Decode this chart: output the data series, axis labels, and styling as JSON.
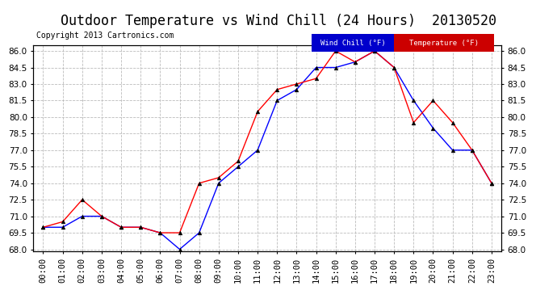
{
  "title": "Outdoor Temperature vs Wind Chill (24 Hours)  20130520",
  "copyright": "Copyright 2013 Cartronics.com",
  "x_labels": [
    "00:00",
    "01:00",
    "02:00",
    "03:00",
    "04:00",
    "05:00",
    "06:00",
    "07:00",
    "08:00",
    "09:00",
    "10:00",
    "11:00",
    "12:00",
    "13:00",
    "14:00",
    "15:00",
    "16:00",
    "17:00",
    "18:00",
    "19:00",
    "20:00",
    "21:00",
    "22:00",
    "23:00"
  ],
  "wind_chill": [
    70.0,
    70.0,
    71.0,
    71.0,
    70.0,
    70.0,
    69.5,
    68.0,
    69.5,
    74.0,
    75.5,
    77.0,
    81.5,
    82.5,
    84.5,
    84.5,
    85.0,
    86.0,
    84.5,
    81.5,
    79.0,
    77.0,
    77.0,
    74.0
  ],
  "temperature": [
    70.0,
    70.5,
    72.5,
    71.0,
    70.0,
    70.0,
    69.5,
    69.5,
    74.0,
    74.5,
    76.0,
    80.5,
    82.5,
    83.0,
    83.5,
    86.0,
    85.0,
    86.0,
    84.5,
    79.5,
    81.5,
    79.5,
    77.0,
    74.0
  ],
  "wind_chill_color": "#0000ff",
  "temperature_color": "#ff0000",
  "ylim_min": 68.0,
  "ylim_max": 86.0,
  "yticks": [
    68.0,
    69.5,
    71.0,
    72.5,
    74.0,
    75.5,
    77.0,
    78.5,
    80.0,
    81.5,
    83.0,
    84.5,
    86.0
  ],
  "bg_color": "#ffffff",
  "grid_color": "#bbbbbb",
  "legend_wind_chill_bg": "#0000cc",
  "legend_temperature_bg": "#cc0000",
  "legend_text_color": "#ffffff",
  "title_fontsize": 12,
  "copyright_fontsize": 7,
  "axis_fontsize": 7.5
}
